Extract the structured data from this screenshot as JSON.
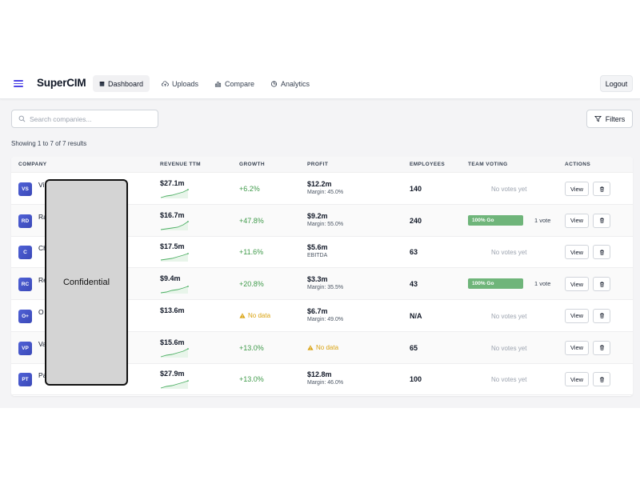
{
  "navbar": {
    "brand": "SuperCIM",
    "tabs": [
      {
        "label": "Dashboard",
        "icon": "dashboard-icon",
        "active": true
      },
      {
        "label": "Uploads",
        "icon": "upload-cloud-icon",
        "active": false
      },
      {
        "label": "Compare",
        "icon": "bar-chart-icon",
        "active": false
      },
      {
        "label": "Analytics",
        "icon": "pie-chart-icon",
        "active": false
      }
    ],
    "logout_label": "Logout"
  },
  "toolbar": {
    "search_placeholder": "Search companies...",
    "filters_label": "Filters"
  },
  "results_text": "Showing 1 to 7 of 7 results",
  "table": {
    "columns": [
      "Company",
      "Revenue TTM",
      "Growth",
      "Profit",
      "Employees",
      "Team Voting",
      "Actions"
    ],
    "rows": [
      {
        "initials": "VS",
        "name": "Vi",
        "revenue": "$27.1m",
        "growth": "+6.2%",
        "profit": "$12.2m",
        "margin": "Margin: 45.0%",
        "employees": "140",
        "voting": "No votes yet",
        "view": "View"
      },
      {
        "initials": "RD",
        "name": "Ra                              a Ra",
        "revenue": "$16.7m",
        "growth": "+47.8%",
        "profit": "$9.2m",
        "margin": "Margin: 55.0%",
        "employees": "240",
        "vote_label": "100% Go",
        "vote_pct": 100,
        "vote_count": "1 vote",
        "view": "View"
      },
      {
        "initials": "C",
        "name": "Ch",
        "revenue": "$17.5m",
        "growth": "+11.6%",
        "profit": "$5.6m",
        "margin": "EBITDA",
        "employees": "63",
        "voting": "No votes yet",
        "view": "View"
      },
      {
        "initials": "RC",
        "name": "Re",
        "revenue": "$9.4m",
        "growth": "+20.8%",
        "profit": "$3.3m",
        "margin": "Margin: 35.5%",
        "employees": "43",
        "vote_label": "100% Go",
        "vote_pct": 100,
        "vote_count": "1 vote",
        "view": "View"
      },
      {
        "initials": "O+",
        "name": "O",
        "revenue": "$13.6m",
        "growth_nodata": "No data",
        "profit": "$6.7m",
        "margin": "Margin: 49.0%",
        "employees": "N/A",
        "voting": "No votes yet",
        "view": "View"
      },
      {
        "initials": "VP",
        "name": "Va",
        "revenue": "$15.6m",
        "growth": "+13.0%",
        "profit_nodata": "No data",
        "employees": "65",
        "voting": "No votes yet",
        "view": "View"
      },
      {
        "initials": "PT",
        "name": "Pa",
        "revenue": "$27.9m",
        "growth": "+13.0%",
        "profit": "$12.8m",
        "margin": "Margin: 46.0%",
        "employees": "100",
        "voting": "No votes yet",
        "view": "View"
      }
    ]
  },
  "redaction_label": "Confidential",
  "colors": {
    "accent": "#4f46e5",
    "growth": "#3f9a4a",
    "warning": "#d9a20f",
    "vote": "#6fb57a"
  }
}
